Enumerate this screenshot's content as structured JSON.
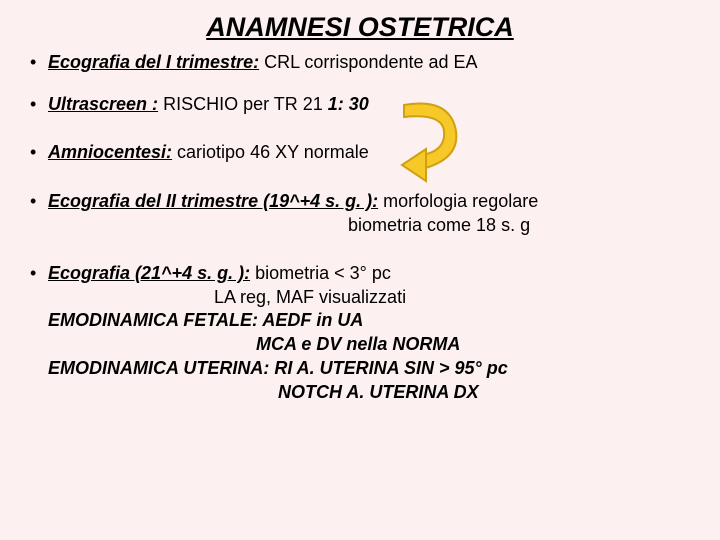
{
  "title": "ANAMNESI OSTETRICA",
  "items": [
    {
      "lead": "Ecografia del I trimestre:",
      "rest": " CRL corrispondente ad EA",
      "gap": 18
    },
    {
      "lead": "Ultrascreen :",
      "rest": " RISCHIO per TR 21  ",
      "hlpart": "1: 30",
      "gap": 24
    },
    {
      "lead": "Amniocentesi:",
      "rest": " cariotipo 46 XY normale",
      "gap": 26
    },
    {
      "lead": "Ecografia del II trimestre (19^+4 s. g. ):",
      "rest": "  morfologia regolare",
      "sublines": [
        {
          "cls": "ind1",
          "text": "biometria come 18 s. g"
        }
      ],
      "gap": 24
    },
    {
      "lead": "Ecografia (21^+4 s. g. ):",
      "rest": " biometria < 3° pc",
      "sublines": [
        {
          "cls": "ind2",
          "text": "LA reg, MAF visualizzati"
        },
        {
          "cls": "",
          "sub": "EMODINAMICA FETALE:",
          "bold": " AEDF in UA"
        },
        {
          "cls": "ind3",
          "bold": "MCA e DV nella NORMA"
        },
        {
          "cls": "",
          "sub": "EMODINAMICA UTERINA:",
          "bold": " RI A. UTERINA SIN > 95° pc"
        },
        {
          "cls": "ind4",
          "bold": "NOTCH A. UTERINA DX"
        }
      ],
      "gap": 0
    }
  ],
  "arrow": {
    "stroke": "#d0a010",
    "fill": "#f6c828"
  }
}
